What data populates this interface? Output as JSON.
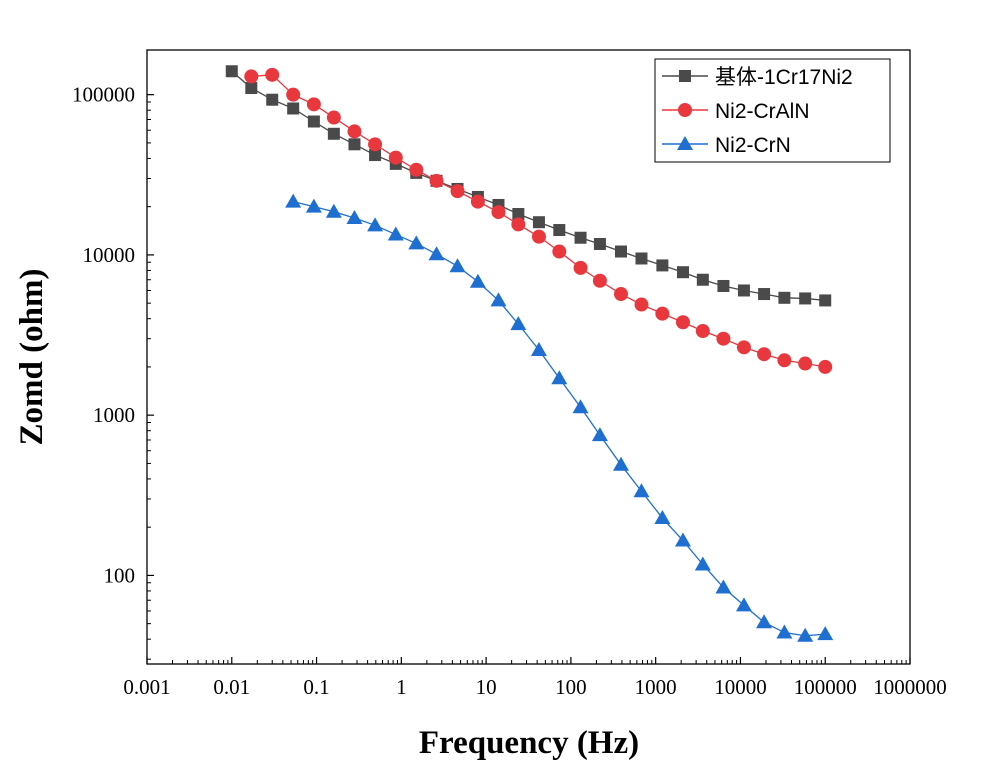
{
  "chart_data": {
    "type": "line",
    "xlabel": "Frequency (Hz)",
    "ylabel": "Zomd (ohm)",
    "x_scale": "log",
    "y_scale": "log",
    "xlim": [
      0.001,
      1000000
    ],
    "ylim": [
      28,
      190000
    ],
    "x_ticks": [
      "0.001",
      "0.01",
      "0.1",
      "1",
      "10",
      "100",
      "1000",
      "10000",
      "100000",
      "1000000"
    ],
    "y_ticks": [
      "100",
      "1000",
      "10000",
      "100000"
    ],
    "grid": false,
    "legend_position": "top-right",
    "series": [
      {
        "name": "基体-1Cr17Ni2",
        "color": "#4a4a4a",
        "marker": "square",
        "x": [
          0.01,
          0.017,
          0.03,
          0.053,
          0.093,
          0.16,
          0.28,
          0.49,
          0.86,
          1.5,
          2.6,
          4.6,
          8,
          14,
          24,
          42,
          73,
          130,
          220,
          390,
          680,
          1200,
          2100,
          3600,
          6300,
          11000,
          19000,
          33000,
          58000,
          100000
        ],
        "y": [
          140000,
          110000,
          93000,
          82000,
          68000,
          57000,
          49000,
          42000,
          37000,
          32500,
          29000,
          25800,
          23000,
          20500,
          18000,
          16000,
          14300,
          12800,
          11700,
          10500,
          9500,
          8600,
          7800,
          7000,
          6400,
          6000,
          5700,
          5400,
          5350,
          5200
        ]
      },
      {
        "name": "Ni2-CrAlN",
        "color": "#e8373d",
        "marker": "circle",
        "x": [
          0.017,
          0.03,
          0.053,
          0.093,
          0.16,
          0.28,
          0.49,
          0.86,
          1.5,
          2.6,
          4.6,
          8,
          14,
          24,
          42,
          73,
          130,
          220,
          390,
          680,
          1200,
          2100,
          3600,
          6300,
          11000,
          19000,
          33000,
          58000,
          100000
        ],
        "y": [
          130000,
          133000,
          100000,
          87000,
          72000,
          59000,
          49000,
          40500,
          34000,
          29000,
          25000,
          21500,
          18500,
          15500,
          13000,
          10500,
          8300,
          6900,
          5700,
          4900,
          4300,
          3800,
          3350,
          3000,
          2650,
          2400,
          2200,
          2100,
          2000
        ]
      },
      {
        "name": "Ni2-CrN",
        "color": "#1f6fd1",
        "marker": "triangle",
        "x": [
          0.053,
          0.093,
          0.16,
          0.28,
          0.49,
          0.86,
          1.5,
          2.6,
          4.6,
          8,
          14,
          24,
          42,
          73,
          130,
          220,
          390,
          680,
          1200,
          2100,
          3600,
          6300,
          11000,
          19000,
          33000,
          58000,
          100000
        ],
        "y": [
          21500,
          20000,
          18600,
          17000,
          15300,
          13400,
          11800,
          10100,
          8500,
          6800,
          5200,
          3700,
          2550,
          1700,
          1120,
          750,
          490,
          335,
          228,
          165,
          117,
          84,
          65,
          51,
          44,
          42,
          43
        ]
      }
    ]
  }
}
